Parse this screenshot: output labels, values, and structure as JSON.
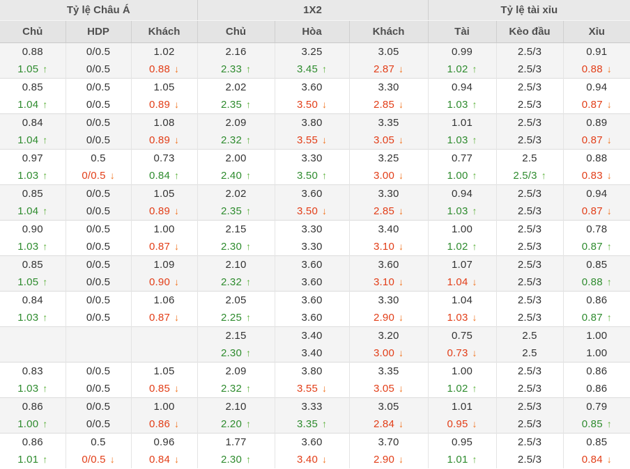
{
  "table": {
    "group_headers": [
      {
        "label": "Tỷ lệ Châu Á",
        "span": 3
      },
      {
        "label": "1X2",
        "span": 3
      },
      {
        "label": "Tỷ lệ tài xỉu",
        "span": 3
      }
    ],
    "columns": [
      "Chủ",
      "HDP",
      "Khách",
      "Chủ",
      "Hòa",
      "Khách",
      "Tài",
      "Kèo đầu",
      "Xỉu"
    ],
    "icons": {
      "up": "↑",
      "down": "↓"
    },
    "colors": {
      "up_text": "#2e8b2e",
      "down_text": "#e23d17",
      "up_arrow": "#5bb03a",
      "down_arrow": "#f1731f",
      "text": "#333333",
      "header_text": "#4f4f4f",
      "shaded_row_bg": "#f4f4f4"
    },
    "rows": [
      {
        "shaded": true,
        "lines": [
          [
            "0.88",
            "0/0.5",
            "1.02",
            "2.16",
            "3.25",
            "3.05",
            "0.99",
            "2.5/3",
            "0.91"
          ],
          [
            {
              "v": "1.05",
              "d": "up"
            },
            "0/0.5",
            {
              "v": "0.88",
              "d": "down"
            },
            {
              "v": "2.33",
              "d": "up"
            },
            {
              "v": "3.45",
              "d": "up"
            },
            {
              "v": "2.87",
              "d": "down"
            },
            {
              "v": "1.02",
              "d": "up"
            },
            "2.5/3",
            {
              "v": "0.88",
              "d": "down"
            }
          ]
        ]
      },
      {
        "shaded": false,
        "lines": [
          [
            "0.85",
            "0/0.5",
            "1.05",
            "2.02",
            "3.60",
            "3.30",
            "0.94",
            "2.5/3",
            "0.94"
          ],
          [
            {
              "v": "1.04",
              "d": "up"
            },
            "0/0.5",
            {
              "v": "0.89",
              "d": "down"
            },
            {
              "v": "2.35",
              "d": "up"
            },
            {
              "v": "3.50",
              "d": "down"
            },
            {
              "v": "2.85",
              "d": "down"
            },
            {
              "v": "1.03",
              "d": "up"
            },
            "2.5/3",
            {
              "v": "0.87",
              "d": "down"
            }
          ]
        ]
      },
      {
        "shaded": true,
        "lines": [
          [
            "0.84",
            "0/0.5",
            "1.08",
            "2.09",
            "3.80",
            "3.35",
            "1.01",
            "2.5/3",
            "0.89"
          ],
          [
            {
              "v": "1.04",
              "d": "up"
            },
            "0/0.5",
            {
              "v": "0.89",
              "d": "down"
            },
            {
              "v": "2.32",
              "d": "up"
            },
            {
              "v": "3.55",
              "d": "down"
            },
            {
              "v": "3.05",
              "d": "down"
            },
            {
              "v": "1.03",
              "d": "up"
            },
            "2.5/3",
            {
              "v": "0.87",
              "d": "down"
            }
          ]
        ]
      },
      {
        "shaded": false,
        "lines": [
          [
            "0.97",
            "0.5",
            "0.73",
            "2.00",
            "3.30",
            "3.25",
            "0.77",
            "2.5",
            "0.88"
          ],
          [
            {
              "v": "1.03",
              "d": "up"
            },
            {
              "v": "0/0.5",
              "d": "down"
            },
            {
              "v": "0.84",
              "d": "up"
            },
            {
              "v": "2.40",
              "d": "up"
            },
            {
              "v": "3.50",
              "d": "up"
            },
            {
              "v": "3.00",
              "d": "down"
            },
            {
              "v": "1.00",
              "d": "up"
            },
            {
              "v": "2.5/3",
              "d": "up"
            },
            {
              "v": "0.83",
              "d": "down"
            }
          ]
        ]
      },
      {
        "shaded": true,
        "lines": [
          [
            "0.85",
            "0/0.5",
            "1.05",
            "2.02",
            "3.60",
            "3.30",
            "0.94",
            "2.5/3",
            "0.94"
          ],
          [
            {
              "v": "1.04",
              "d": "up"
            },
            "0/0.5",
            {
              "v": "0.89",
              "d": "down"
            },
            {
              "v": "2.35",
              "d": "up"
            },
            {
              "v": "3.50",
              "d": "down"
            },
            {
              "v": "2.85",
              "d": "down"
            },
            {
              "v": "1.03",
              "d": "up"
            },
            "2.5/3",
            {
              "v": "0.87",
              "d": "down"
            }
          ]
        ]
      },
      {
        "shaded": false,
        "lines": [
          [
            "0.90",
            "0/0.5",
            "1.00",
            "2.15",
            "3.30",
            "3.40",
            "1.00",
            "2.5/3",
            "0.78"
          ],
          [
            {
              "v": "1.03",
              "d": "up"
            },
            "0/0.5",
            {
              "v": "0.87",
              "d": "down"
            },
            {
              "v": "2.30",
              "d": "up"
            },
            "3.30",
            {
              "v": "3.10",
              "d": "down"
            },
            {
              "v": "1.02",
              "d": "up"
            },
            "2.5/3",
            {
              "v": "0.87",
              "d": "up"
            }
          ]
        ]
      },
      {
        "shaded": true,
        "lines": [
          [
            "0.85",
            "0/0.5",
            "1.09",
            "2.10",
            "3.60",
            "3.60",
            "1.07",
            "2.5/3",
            "0.85"
          ],
          [
            {
              "v": "1.05",
              "d": "up"
            },
            "0/0.5",
            {
              "v": "0.90",
              "d": "down"
            },
            {
              "v": "2.32",
              "d": "up"
            },
            "3.60",
            {
              "v": "3.10",
              "d": "down"
            },
            {
              "v": "1.04",
              "d": "down"
            },
            "2.5/3",
            {
              "v": "0.88",
              "d": "up"
            }
          ]
        ]
      },
      {
        "shaded": false,
        "lines": [
          [
            "0.84",
            "0/0.5",
            "1.06",
            "2.05",
            "3.60",
            "3.30",
            "1.04",
            "2.5/3",
            "0.86"
          ],
          [
            {
              "v": "1.03",
              "d": "up"
            },
            "0/0.5",
            {
              "v": "0.87",
              "d": "down"
            },
            {
              "v": "2.25",
              "d": "up"
            },
            "3.60",
            {
              "v": "2.90",
              "d": "down"
            },
            {
              "v": "1.03",
              "d": "down"
            },
            "2.5/3",
            {
              "v": "0.87",
              "d": "up"
            }
          ]
        ]
      },
      {
        "shaded": true,
        "lines": [
          [
            "",
            "",
            "",
            "2.15",
            "3.40",
            "3.20",
            "0.75",
            "2.5",
            "1.00"
          ],
          [
            "",
            "",
            "",
            {
              "v": "2.30",
              "d": "up"
            },
            "3.40",
            {
              "v": "3.00",
              "d": "down"
            },
            {
              "v": "0.73",
              "d": "down"
            },
            "2.5",
            "1.00"
          ]
        ]
      },
      {
        "shaded": false,
        "lines": [
          [
            "0.83",
            "0/0.5",
            "1.05",
            "2.09",
            "3.80",
            "3.35",
            "1.00",
            "2.5/3",
            "0.86"
          ],
          [
            {
              "v": "1.03",
              "d": "up"
            },
            "0/0.5",
            {
              "v": "0.85",
              "d": "down"
            },
            {
              "v": "2.32",
              "d": "up"
            },
            {
              "v": "3.55",
              "d": "down"
            },
            {
              "v": "3.05",
              "d": "down"
            },
            {
              "v": "1.02",
              "d": "up"
            },
            "2.5/3",
            "0.86"
          ]
        ]
      },
      {
        "shaded": true,
        "lines": [
          [
            "0.86",
            "0/0.5",
            "1.00",
            "2.10",
            "3.33",
            "3.05",
            "1.01",
            "2.5/3",
            "0.79"
          ],
          [
            {
              "v": "1.00",
              "d": "up"
            },
            "0/0.5",
            {
              "v": "0.86",
              "d": "down"
            },
            {
              "v": "2.20",
              "d": "up"
            },
            {
              "v": "3.35",
              "d": "up"
            },
            {
              "v": "2.84",
              "d": "down"
            },
            {
              "v": "0.95",
              "d": "down"
            },
            "2.5/3",
            {
              "v": "0.85",
              "d": "up"
            }
          ]
        ]
      },
      {
        "shaded": false,
        "lines": [
          [
            "0.86",
            "0.5",
            "0.96",
            "1.77",
            "3.60",
            "3.70",
            "0.95",
            "2.5/3",
            "0.85"
          ],
          [
            {
              "v": "1.01",
              "d": "up"
            },
            {
              "v": "0/0.5",
              "d": "down"
            },
            {
              "v": "0.84",
              "d": "down"
            },
            {
              "v": "2.30",
              "d": "up"
            },
            {
              "v": "3.40",
              "d": "down"
            },
            {
              "v": "2.90",
              "d": "down"
            },
            {
              "v": "1.01",
              "d": "up"
            },
            "2.5/3",
            {
              "v": "0.84",
              "d": "down"
            }
          ]
        ]
      }
    ]
  }
}
